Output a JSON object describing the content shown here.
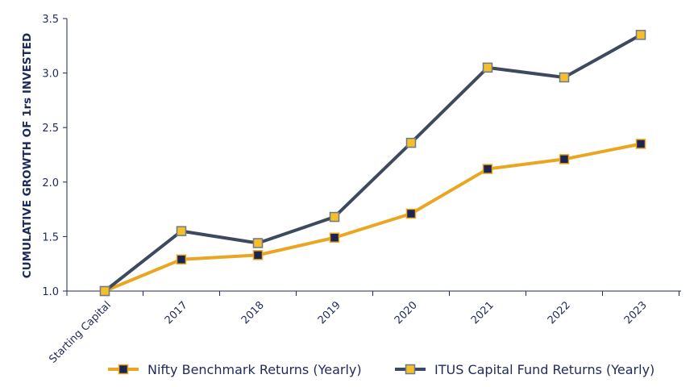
{
  "chart_data": {
    "type": "line",
    "categories": [
      "Starting Capital",
      "2017",
      "2018",
      "2019",
      "2020",
      "2021",
      "2022",
      "2023"
    ],
    "series": [
      {
        "name": "Nifty Benchmark Returns (Yearly)",
        "values": [
          1.0,
          1.29,
          1.33,
          1.49,
          1.71,
          2.12,
          2.21,
          2.35
        ],
        "line_color": "#eaa620",
        "marker_fill": "#1c2552",
        "marker_stroke": "#eaa620"
      },
      {
        "name": "ITUS Capital Fund Returns (Yearly)",
        "values": [
          1.0,
          1.55,
          1.44,
          1.68,
          2.36,
          3.05,
          2.96,
          3.35
        ],
        "line_color": "#3d4a5e",
        "marker_fill": "#f4bf2a",
        "marker_stroke": "#6a7a8c"
      }
    ],
    "ylabel": "CUMULATIVE GROWTH OF 1rs INVESTED",
    "xlabel": "",
    "ylim": [
      1.0,
      3.5
    ],
    "yticks": [
      "1.0",
      "1.5",
      "2.0",
      "2.5",
      "3.0",
      "3.5"
    ],
    "grid": false,
    "legend_position": "bottom-right",
    "axis_color": "#1f2a5a"
  }
}
